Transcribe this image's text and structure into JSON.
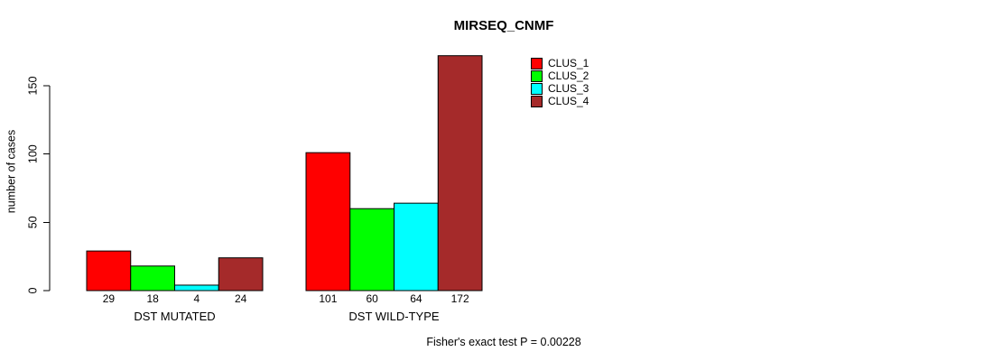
{
  "chart_data": {
    "type": "bar",
    "title": "MIRSEQ_CNMF",
    "ylabel": "number of cases",
    "xlabel": "",
    "footnote": "Fisher's exact test P = 0.00228",
    "categories": [
      "DST MUTATED",
      "DST WILD-TYPE"
    ],
    "series": [
      {
        "name": "CLUS_1",
        "color": "#FF0000",
        "values": [
          29,
          101
        ]
      },
      {
        "name": "CLUS_2",
        "color": "#00FF00",
        "values": [
          18,
          60
        ]
      },
      {
        "name": "CLUS_3",
        "color": "#00FFFF",
        "values": [
          4,
          64
        ]
      },
      {
        "name": "CLUS_4",
        "color": "#A52A2A",
        "values": [
          24,
          172
        ]
      }
    ],
    "bar_value_labels": [
      [
        29,
        18,
        4,
        24
      ],
      [
        101,
        60,
        64,
        172
      ]
    ],
    "yticks": [
      0,
      50,
      100,
      150
    ],
    "ylim": [
      0,
      150
    ],
    "grid": false,
    "legend_position": "top-right",
    "bar_border_color": "#000000",
    "axis_color": "#000000"
  }
}
